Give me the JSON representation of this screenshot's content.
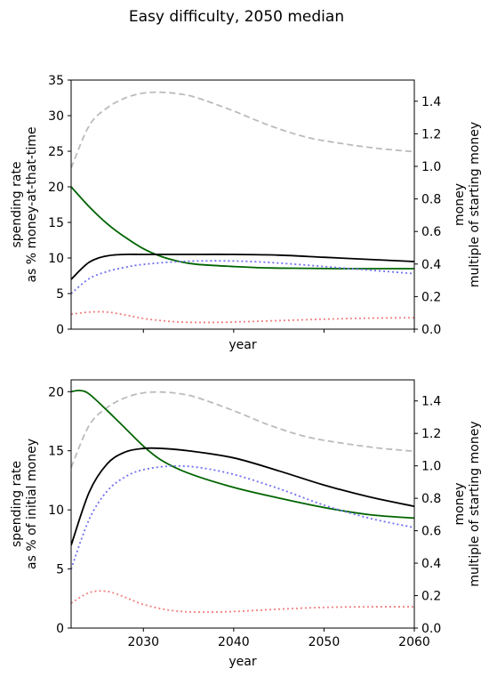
{
  "figure": {
    "title": "Easy difficulty, 2050 median"
  },
  "colors": {
    "black": "#000000",
    "green": "#006400",
    "blue": "#7070f0",
    "red": "#f08080",
    "gray": "#bbbbbb"
  },
  "chart_data": [
    {
      "type": "line",
      "xlabel": "year",
      "xlim": [
        2022,
        2060
      ],
      "xticks": [
        2030,
        2040,
        2050,
        2060
      ],
      "show_x_tick_labels": false,
      "grid": false,
      "ylabel_left": [
        "spending rate",
        "as % money-at-that-time"
      ],
      "ylim_left": [
        0,
        35
      ],
      "yticks_left": [
        0,
        5,
        10,
        15,
        20,
        25,
        30,
        35
      ],
      "ylabel_right": [
        "money",
        "multiple of starting money"
      ],
      "ylim_right": [
        0,
        1.53
      ],
      "yticks_right": [
        0.0,
        0.2,
        0.4,
        0.6,
        0.8,
        1.0,
        1.2,
        1.4
      ],
      "series": [
        {
          "axis": "right",
          "color": "gray",
          "style": "dashed",
          "x": [
            2022,
            2024,
            2026,
            2028,
            2030,
            2032,
            2034,
            2036,
            2040,
            2044,
            2048,
            2052,
            2056,
            2060
          ],
          "y": [
            0.99,
            1.25,
            1.36,
            1.42,
            1.45,
            1.455,
            1.445,
            1.42,
            1.34,
            1.25,
            1.18,
            1.14,
            1.11,
            1.09
          ]
        },
        {
          "axis": "left",
          "color": "green",
          "style": "solid",
          "x": [
            2022,
            2024,
            2026,
            2028,
            2030,
            2032,
            2034,
            2036,
            2040,
            2044,
            2048,
            2052,
            2056,
            2060
          ],
          "y": [
            20.0,
            17.2,
            14.8,
            12.9,
            11.3,
            10.2,
            9.5,
            9.1,
            8.8,
            8.6,
            8.55,
            8.5,
            8.5,
            8.5
          ]
        },
        {
          "axis": "left",
          "color": "black",
          "style": "solid",
          "x": [
            2022,
            2024,
            2026,
            2028,
            2030,
            2035,
            2040,
            2045,
            2050,
            2055,
            2060
          ],
          "y": [
            7.0,
            9.4,
            10.3,
            10.5,
            10.5,
            10.5,
            10.5,
            10.4,
            10.1,
            9.8,
            9.5
          ]
        },
        {
          "axis": "left",
          "color": "blue",
          "style": "dotted",
          "x": [
            2022,
            2024,
            2026,
            2028,
            2030,
            2034,
            2038,
            2042,
            2046,
            2050,
            2054,
            2058,
            2060
          ],
          "y": [
            5.0,
            7.1,
            8.1,
            8.7,
            9.1,
            9.5,
            9.6,
            9.5,
            9.2,
            8.8,
            8.4,
            8.0,
            7.8
          ]
        },
        {
          "axis": "left",
          "color": "red",
          "style": "dotted",
          "x": [
            2022,
            2024,
            2026,
            2028,
            2030,
            2032,
            2034,
            2036,
            2038,
            2040,
            2045,
            2050,
            2055,
            2060
          ],
          "y": [
            2.1,
            2.4,
            2.4,
            2.0,
            1.5,
            1.2,
            1.0,
            0.95,
            0.95,
            1.0,
            1.2,
            1.4,
            1.55,
            1.6
          ]
        }
      ]
    },
    {
      "type": "line",
      "xlabel": "year",
      "xlim": [
        2022,
        2060
      ],
      "xticks": [
        2030,
        2040,
        2050,
        2060
      ],
      "show_x_tick_labels": true,
      "grid": false,
      "ylabel_left": [
        "spending rate",
        "as % of initial money"
      ],
      "ylim_left": [
        0,
        21
      ],
      "yticks_left": [
        0,
        5,
        10,
        15,
        20
      ],
      "ylabel_right": [
        "money",
        "multiple of starting money"
      ],
      "ylim_right": [
        0,
        1.53
      ],
      "yticks_right": [
        0.0,
        0.2,
        0.4,
        0.6,
        0.8,
        1.0,
        1.2,
        1.4
      ],
      "series": [
        {
          "axis": "right",
          "color": "gray",
          "style": "dashed",
          "x": [
            2022,
            2024,
            2026,
            2028,
            2030,
            2032,
            2034,
            2036,
            2040,
            2044,
            2048,
            2052,
            2056,
            2060
          ],
          "y": [
            0.99,
            1.25,
            1.36,
            1.42,
            1.45,
            1.455,
            1.445,
            1.42,
            1.34,
            1.25,
            1.18,
            1.14,
            1.11,
            1.09
          ]
        },
        {
          "axis": "left",
          "color": "green",
          "style": "solid",
          "x": [
            2022,
            2023,
            2024,
            2026,
            2028,
            2030,
            2032,
            2035,
            2040,
            2045,
            2050,
            2055,
            2060
          ],
          "y": [
            20.0,
            20.1,
            19.8,
            18.4,
            16.9,
            15.4,
            14.2,
            13.1,
            11.9,
            11.0,
            10.2,
            9.6,
            9.3
          ]
        },
        {
          "axis": "left",
          "color": "black",
          "style": "solid",
          "x": [
            2022,
            2024,
            2026,
            2028,
            2030,
            2032,
            2035,
            2040,
            2045,
            2050,
            2055,
            2060
          ],
          "y": [
            7.0,
            11.5,
            13.9,
            14.9,
            15.2,
            15.2,
            15.0,
            14.4,
            13.3,
            12.1,
            11.1,
            10.3
          ]
        },
        {
          "axis": "left",
          "color": "blue",
          "style": "dotted",
          "x": [
            2022,
            2024,
            2026,
            2028,
            2030,
            2033,
            2036,
            2040,
            2045,
            2050,
            2055,
            2060
          ],
          "y": [
            5.0,
            9.2,
            11.6,
            12.8,
            13.4,
            13.7,
            13.6,
            13.0,
            11.8,
            10.4,
            9.3,
            8.5
          ]
        },
        {
          "axis": "left",
          "color": "red",
          "style": "dotted",
          "x": [
            2022,
            2024,
            2026,
            2028,
            2030,
            2033,
            2036,
            2040,
            2045,
            2050,
            2055,
            2060
          ],
          "y": [
            2.1,
            3.0,
            3.1,
            2.6,
            2.0,
            1.5,
            1.35,
            1.4,
            1.6,
            1.75,
            1.8,
            1.8
          ]
        }
      ]
    }
  ]
}
